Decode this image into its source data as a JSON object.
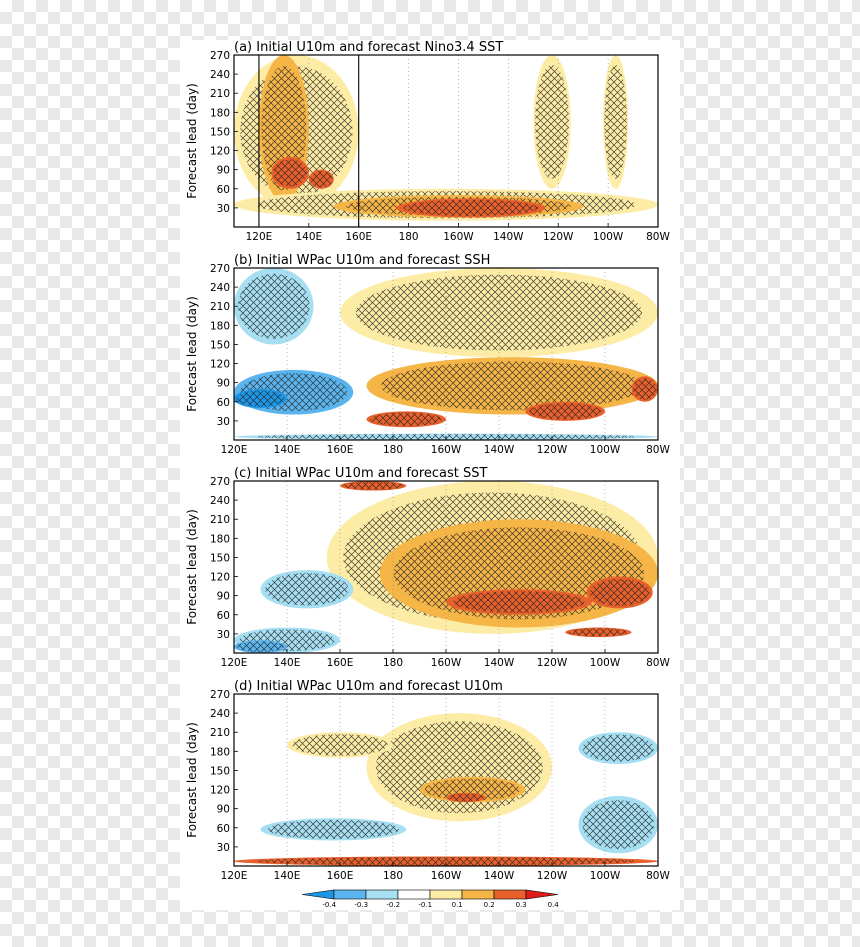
{
  "chart_data": [
    {
      "type": "heatmap",
      "panel": "a",
      "title": "(a) Initial U10m and forecast Nino3.4 SST",
      "ylabel": "Forecast lead (day)",
      "xlabel": "",
      "x_ticks": [
        "120E",
        "140E",
        "160E",
        "180",
        "160W",
        "140W",
        "120W",
        "100W",
        "80W"
      ],
      "x_range_deg": [
        110,
        280
      ],
      "y_ticks": [
        30,
        60,
        90,
        120,
        150,
        180,
        210,
        240,
        270
      ],
      "y_range": [
        0,
        270
      ],
      "box_lines_deg": [
        120,
        160
      ],
      "blobs": [
        {
          "lon": [
            110,
            160
          ],
          "lead": [
            30,
            270
          ],
          "value": 0.15
        },
        {
          "lon": [
            120,
            140
          ],
          "lead": [
            40,
            270
          ],
          "value": 0.2
        },
        {
          "lon": [
            125,
            140
          ],
          "lead": [
            60,
            110
          ],
          "value": 0.3
        },
        {
          "lon": [
            140,
            150
          ],
          "lead": [
            60,
            90
          ],
          "value": 0.3
        },
        {
          "lon": [
            110,
            280
          ],
          "lead": [
            10,
            60
          ],
          "value": 0.15
        },
        {
          "lon": [
            150,
            250
          ],
          "lead": [
            15,
            50
          ],
          "value": 0.2
        },
        {
          "lon": [
            175,
            235
          ],
          "lead": [
            15,
            45
          ],
          "value": 0.3
        },
        {
          "lon": [
            230,
            245
          ],
          "lead": [
            60,
            270
          ],
          "value": 0.15
        },
        {
          "lon": [
            258,
            268
          ],
          "lead": [
            60,
            270
          ],
          "value": 0.15
        }
      ]
    },
    {
      "type": "heatmap",
      "panel": "b",
      "title": "(b) Initial WPac U10m and forecast SSH",
      "ylabel": "Forecast lead (day)",
      "xlabel": "",
      "x_ticks": [
        "120E",
        "140E",
        "160E",
        "180",
        "160W",
        "140W",
        "120W",
        "100W",
        "80W"
      ],
      "x_range_deg": [
        120,
        280
      ],
      "y_ticks": [
        30,
        60,
        90,
        120,
        150,
        180,
        210,
        240,
        270
      ],
      "y_range": [
        0,
        270
      ],
      "blobs": [
        {
          "lon": [
            120,
            150
          ],
          "lead": [
            150,
            270
          ],
          "value": -0.15
        },
        {
          "lon": [
            120,
            165
          ],
          "lead": [
            40,
            110
          ],
          "value": -0.2
        },
        {
          "lon": [
            120,
            140
          ],
          "lead": [
            50,
            80
          ],
          "value": -0.3
        },
        {
          "lon": [
            120,
            280
          ],
          "lead": [
            0,
            10
          ],
          "value": -0.15
        },
        {
          "lon": [
            160,
            280
          ],
          "lead": [
            130,
            270
          ],
          "value": 0.15
        },
        {
          "lon": [
            170,
            280
          ],
          "lead": [
            40,
            130
          ],
          "value": 0.2
        },
        {
          "lon": [
            170,
            200
          ],
          "lead": [
            20,
            45
          ],
          "value": 0.3
        },
        {
          "lon": [
            230,
            260
          ],
          "lead": [
            30,
            60
          ],
          "value": 0.3
        },
        {
          "lon": [
            270,
            280
          ],
          "lead": [
            60,
            100
          ],
          "value": 0.3
        }
      ]
    },
    {
      "type": "heatmap",
      "panel": "c",
      "title": "(c) Initial WPac U10m and forecast SST",
      "ylabel": "Forecast lead (day)",
      "xlabel": "",
      "x_ticks": [
        "120E",
        "140E",
        "160E",
        "180",
        "160W",
        "140W",
        "120W",
        "100W",
        "80W"
      ],
      "x_range_deg": [
        120,
        280
      ],
      "y_ticks": [
        30,
        60,
        90,
        120,
        150,
        180,
        210,
        240,
        270
      ],
      "y_range": [
        0,
        270
      ],
      "blobs": [
        {
          "lon": [
            155,
            280
          ],
          "lead": [
            30,
            270
          ],
          "value": 0.15
        },
        {
          "lon": [
            175,
            280
          ],
          "lead": [
            40,
            210
          ],
          "value": 0.2
        },
        {
          "lon": [
            160,
            185
          ],
          "lead": [
            255,
            270
          ],
          "value": 0.3
        },
        {
          "lon": [
            200,
            255
          ],
          "lead": [
            60,
            100
          ],
          "value": 0.3
        },
        {
          "lon": [
            253,
            278
          ],
          "lead": [
            70,
            120
          ],
          "value": 0.3
        },
        {
          "lon": [
            245,
            270
          ],
          "lead": [
            25,
            40
          ],
          "value": 0.3
        },
        {
          "lon": [
            130,
            165
          ],
          "lead": [
            70,
            130
          ],
          "value": -0.15
        },
        {
          "lon": [
            120,
            160
          ],
          "lead": [
            0,
            40
          ],
          "value": -0.15
        },
        {
          "lon": [
            120,
            140
          ],
          "lead": [
            0,
            20
          ],
          "value": -0.2
        }
      ]
    },
    {
      "type": "heatmap",
      "panel": "d",
      "title": "(d) Initial WPac U10m and forecast U10m",
      "ylabel": "Forecast lead (day)",
      "xlabel": "",
      "x_ticks": [
        "120E",
        "140E",
        "160E",
        "180",
        "160W",
        "140W",
        "120W",
        "100W",
        "80W"
      ],
      "x_range_deg": [
        120,
        280
      ],
      "y_ticks": [
        30,
        60,
        90,
        120,
        150,
        180,
        210,
        240,
        270
      ],
      "y_range": [
        0,
        270
      ],
      "blobs": [
        {
          "lon": [
            120,
            280
          ],
          "lead": [
            0,
            15
          ],
          "value": 0.3
        },
        {
          "lon": [
            130,
            185
          ],
          "lead": [
            40,
            75
          ],
          "value": -0.15
        },
        {
          "lon": [
            250,
            280
          ],
          "lead": [
            20,
            110
          ],
          "value": -0.15
        },
        {
          "lon": [
            250,
            280
          ],
          "lead": [
            160,
            210
          ],
          "value": -0.15
        },
        {
          "lon": [
            170,
            240
          ],
          "lead": [
            70,
            240
          ],
          "value": 0.15
        },
        {
          "lon": [
            190,
            230
          ],
          "lead": [
            100,
            140
          ],
          "value": 0.2
        },
        {
          "lon": [
            200,
            215
          ],
          "lead": [
            100,
            115
          ],
          "value": 0.3
        },
        {
          "lon": [
            140,
            180
          ],
          "lead": [
            170,
            210
          ],
          "value": 0.15
        }
      ]
    }
  ],
  "colorbar": {
    "labels": [
      "-0.4",
      "-0.3",
      "-0.2",
      "-0.1",
      "0.1",
      "0.2",
      "0.3",
      "0.4"
    ],
    "colors": [
      "#1e96e6",
      "#5bb4ee",
      "#a6def2",
      "#ffffff",
      "#fdeca6",
      "#f6b547",
      "#e8602b",
      "#e01d1d"
    ]
  }
}
